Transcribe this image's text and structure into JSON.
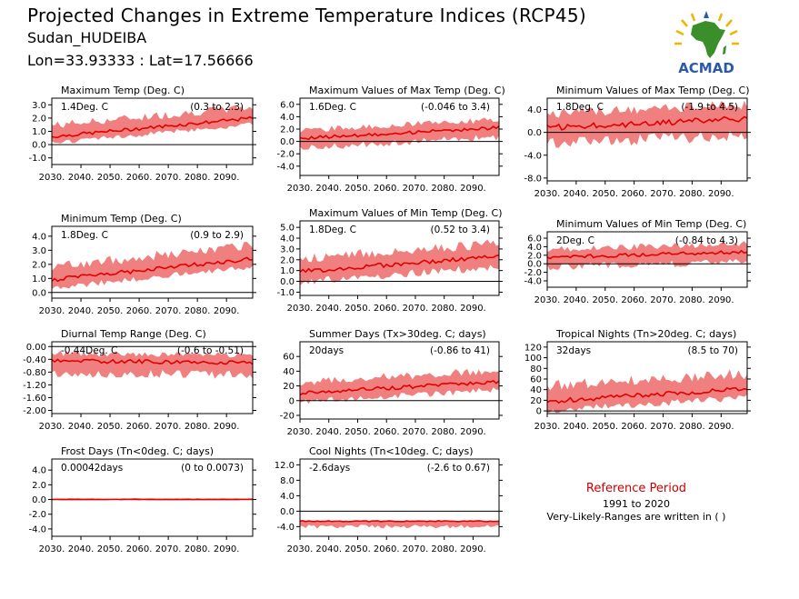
{
  "header": {
    "title": "Projected Changes in Extreme Temperature Indices (RCP45)",
    "site": "Sudan_HUDEIBA",
    "coords": "Lon=33.93333 : Lat=17.56666"
  },
  "logo": {
    "text": "ACMAD",
    "colors": {
      "africa": "#3a8f2a",
      "sun": "#f0b400",
      "drop": "#2a5aa8"
    }
  },
  "reference": {
    "title": "Reference Period",
    "years": "1991 to 2020",
    "note": "Very-Likely-Ranges are written in ( )"
  },
  "colors": {
    "mean_line": "#e00000",
    "range_fill": "#f08080",
    "zero_line": "#000000"
  },
  "chart_data": [
    {
      "type": "area",
      "title": "Maximum Temp (Deg. C)",
      "stat": "1.4Deg. C",
      "range": "(0.3 to 2.3)",
      "x": [
        2030,
        2099
      ],
      "xticks": [
        "2030.",
        "2040.",
        "2050.",
        "2060.",
        "2070.",
        "2080.",
        "2090."
      ],
      "ylim": [
        -1.5,
        3.5
      ],
      "yticks": [
        "-1.0",
        "0.0",
        "1.0",
        "2.0",
        "3.0"
      ],
      "mean_start": 0.6,
      "mean_end": 2.0,
      "band_low": -0.5,
      "band_high": 0.9
    },
    {
      "type": "area",
      "title": "Maximum Values of Max Temp (Deg. C)",
      "stat": "1.6Deg. C",
      "range": "(-0.046 to 3.4)",
      "x": [
        2030,
        2099
      ],
      "xticks": [
        "2030.",
        "2040.",
        "2050.",
        "2060.",
        "2070.",
        "2080.",
        "2090."
      ],
      "ylim": [
        -5.5,
        7.0
      ],
      "yticks": [
        "-4.0",
        "-2.0",
        "0.0",
        "2.0",
        "4.0",
        "6.0"
      ],
      "mean_start": 0.5,
      "mean_end": 2.2,
      "band_low": -1.6,
      "band_high": 1.4
    },
    {
      "type": "area",
      "title": "Minimum Values of Max Temp (Deg. C)",
      "stat": "1.8Deg. C",
      "range": "(-1.9 to 4.5)",
      "x": [
        2030,
        2099
      ],
      "xticks": [
        "2030.",
        "2040.",
        "2050.",
        "2060.",
        "2070.",
        "2080.",
        "2090."
      ],
      "ylim": [
        -8.5,
        6.0
      ],
      "yticks": [
        "-8.0",
        "-4.0",
        "0.0",
        "4.0"
      ],
      "mean_start": 0.8,
      "mean_end": 2.4,
      "band_low": -3.0,
      "band_high": 2.6
    },
    {
      "type": "area",
      "title": "Minimum Temp (Deg. C)",
      "stat": "1.8Deg. C",
      "range": "(0.9 to 2.9)",
      "x": [
        2030,
        2099
      ],
      "xticks": [
        "2030.",
        "2040.",
        "2050.",
        "2060.",
        "2070.",
        "2080.",
        "2090."
      ],
      "ylim": [
        -0.4,
        4.7
      ],
      "yticks": [
        "0.0",
        "1.0",
        "2.0",
        "3.0",
        "4.0"
      ],
      "mean_start": 0.9,
      "mean_end": 2.4,
      "band_low": -0.6,
      "band_high": 1.0
    },
    {
      "type": "area",
      "title": "Maximum Values of Min Temp (Deg. C)",
      "stat": "1.8Deg. C",
      "range": "(0.52 to 3.4)",
      "x": [
        2030,
        2099
      ],
      "xticks": [
        "2030.",
        "2040.",
        "2050.",
        "2060.",
        "2070.",
        "2080.",
        "2090."
      ],
      "ylim": [
        -1.3,
        5.6
      ],
      "yticks": [
        "-1.0",
        "0.0",
        "1.0",
        "2.0",
        "3.0",
        "4.0",
        "5.0"
      ],
      "mean_start": 0.9,
      "mean_end": 2.3,
      "band_low": -1.0,
      "band_high": 1.3
    },
    {
      "type": "area",
      "title": "Minimum Values of Min Temp (Deg. C)",
      "stat": "2Deg. C",
      "range": "(-0.84 to 4.3)",
      "x": [
        2030,
        2099
      ],
      "xticks": [
        "2030.",
        "2040.",
        "2050.",
        "2060.",
        "2070.",
        "2080.",
        "2090."
      ],
      "ylim": [
        -5.5,
        7.5
      ],
      "yticks": [
        "-4.0",
        "-2.0",
        "0.0",
        "2.0",
        "4.0",
        "6.0"
      ],
      "mean_start": 1.5,
      "mean_end": 2.8,
      "band_low": -2.4,
      "band_high": 2.0
    },
    {
      "type": "area",
      "title": "Diurnal Temp Range (Deg. C)",
      "stat": "-0.44Deg. C",
      "range": "(-0.6 to -0.51)",
      "x": [
        2030,
        2099
      ],
      "xticks": [
        "2030.",
        "2040.",
        "2050.",
        "2060.",
        "2070.",
        "2080.",
        "2090."
      ],
      "ylim": [
        -2.1,
        0.15
      ],
      "yticks": [
        "-2.00",
        "-1.60",
        "-1.20",
        "-0.80",
        "-0.40",
        "0.00"
      ],
      "mean_start": -0.45,
      "mean_end": -0.5,
      "band_low": -0.4,
      "band_high": 0.25
    },
    {
      "type": "area",
      "title": "Summer Days (Tx>30deg. C; days)",
      "stat": "20days",
      "range": "(-0.86 to 41)",
      "x": [
        2030,
        2099
      ],
      "xticks": [
        "2030.",
        "2040.",
        "2050.",
        "2060.",
        "2070.",
        "2080.",
        "2090."
      ],
      "ylim": [
        -25,
        80
      ],
      "yticks": [
        "-20",
        "0",
        "20",
        "40",
        "60"
      ],
      "mean_start": 10,
      "mean_end": 26,
      "band_low": -12,
      "band_high": 16
    },
    {
      "type": "area",
      "title": "Tropical Nights (Tn>20deg. C; days)",
      "stat": "32days",
      "range": "(8.5 to 70)",
      "x": [
        2030,
        2099
      ],
      "xticks": [
        "2030.",
        "2040.",
        "2050.",
        "2060.",
        "2070.",
        "2080.",
        "2090."
      ],
      "ylim": [
        -5,
        130
      ],
      "yticks": [
        "0",
        "20",
        "40",
        "60",
        "80",
        "100",
        "120"
      ],
      "mean_start": 18,
      "mean_end": 42,
      "band_low": -18,
      "band_high": 30
    },
    {
      "type": "area",
      "title": "Frost Days (Tn<0deg. C; days)",
      "stat": "0.00042days",
      "range": "(0 to 0.0073)",
      "x": [
        2030,
        2099
      ],
      "xticks": [
        "2030.",
        "2040.",
        "2050.",
        "2060.",
        "2070.",
        "2080.",
        "2090."
      ],
      "ylim": [
        -5,
        5.5
      ],
      "yticks": [
        "-4.0",
        "-2.0",
        "0.0",
        "2.0",
        "4.0"
      ],
      "mean_start": 0,
      "mean_end": 0,
      "band_low": 0,
      "band_high": 0.15
    },
    {
      "type": "area",
      "title": "Cool Nights (Tn<10deg. C; days)",
      "stat": "-2.6days",
      "range": "(-2.6 to 0.67)",
      "x": [
        2030,
        2099
      ],
      "xticks": [
        "2030.",
        "2040.",
        "2050.",
        "2060.",
        "2070.",
        "2080.",
        "2090."
      ],
      "ylim": [
        -6.5,
        13.5
      ],
      "yticks": [
        "-4.0",
        "0.0",
        "4.0",
        "8.0",
        "12.0"
      ],
      "mean_start": -2.6,
      "mean_end": -2.6,
      "band_low": -1.5,
      "band_high": 0
    }
  ]
}
